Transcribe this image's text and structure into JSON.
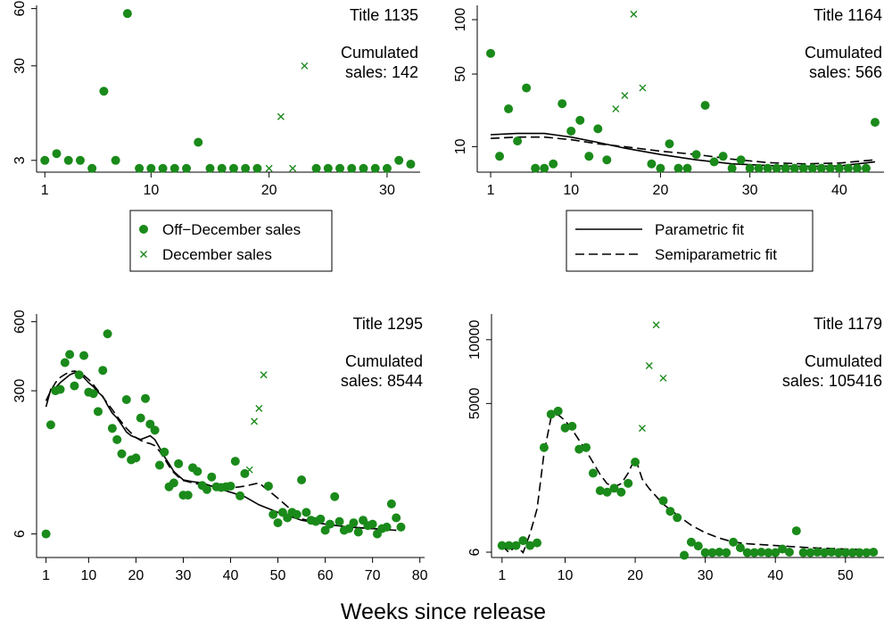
{
  "figure": {
    "xlabel": "Weeks since release"
  },
  "colors": {
    "points": "#1a8a1a",
    "fit": "#000000"
  },
  "legends": {
    "points": [
      {
        "label": "Off−December sales",
        "marker": "circle"
      },
      {
        "label": "December sales",
        "marker": "x"
      }
    ],
    "fits": [
      {
        "label": "Parametric fit",
        "style": "solid"
      },
      {
        "label": "Semiparametric fit",
        "style": "dashed"
      }
    ]
  },
  "chart_data": [
    {
      "type": "scatter",
      "title": "Title 1135",
      "annotation": [
        "Cumulated",
        "sales: 142"
      ],
      "yscale": "sqrt",
      "xlim": [
        0.3,
        32.8
      ],
      "ylim": [
        1.6,
        62
      ],
      "xticks": [
        1,
        10,
        20,
        30
      ],
      "yticks": [
        3,
        30,
        60
      ],
      "off_december": {
        "x": [
          1,
          2,
          3,
          4,
          5,
          6,
          7,
          8,
          9,
          10,
          11,
          12,
          13,
          14,
          15,
          16,
          17,
          18,
          19,
          24,
          25,
          26,
          27,
          28,
          29,
          30,
          31,
          32
        ],
        "y": [
          3,
          4,
          3,
          3,
          2,
          20,
          3,
          57,
          2,
          2,
          2,
          2,
          2,
          6,
          2,
          2,
          2,
          2,
          2,
          2,
          2,
          2,
          2,
          2,
          2,
          2,
          3,
          2.5
        ]
      },
      "december": {
        "x": [
          20,
          21,
          22,
          23
        ],
        "y": [
          2,
          12,
          2,
          30
        ]
      },
      "fits": []
    },
    {
      "type": "scatter",
      "title": "Title 1164",
      "annotation": [
        "Cumulated",
        "sales: 566"
      ],
      "yscale": "sqrt",
      "xlim": [
        -0.5,
        45
      ],
      "ylim": [
        3.2,
        116
      ],
      "xticks": [
        1,
        10,
        20,
        30,
        40
      ],
      "yticks": [
        10,
        50,
        100
      ],
      "off_december": {
        "x": [
          1,
          2,
          3,
          4,
          5,
          6,
          7,
          8,
          9,
          10,
          11,
          12,
          13,
          14,
          19,
          20,
          21,
          22,
          23,
          24,
          25,
          26,
          27,
          28,
          29,
          30,
          31,
          32,
          33,
          34,
          35,
          36,
          37,
          38,
          39,
          40,
          41,
          42,
          43,
          44
        ],
        "y": [
          67,
          7,
          27,
          12,
          40,
          4,
          4,
          5,
          30,
          16,
          21,
          7,
          17,
          6,
          5,
          4,
          11,
          4,
          4,
          7.5,
          29,
          5.5,
          7,
          4,
          6,
          4,
          4,
          4,
          4,
          4,
          4,
          4,
          4,
          4,
          4,
          4,
          4,
          4,
          4,
          20
        ]
      },
      "december": {
        "x": [
          15,
          16,
          17,
          18
        ],
        "y": [
          27,
          35,
          106,
          40
        ]
      },
      "fits": [
        {
          "name": "Parametric fit",
          "style": "solid",
          "x": [
            1,
            4,
            7,
            10,
            13,
            16,
            20,
            24,
            28,
            32,
            36,
            40,
            44
          ],
          "y": [
            14.5,
            15,
            15,
            13.5,
            11.5,
            9.5,
            7.5,
            6,
            5,
            4.6,
            4.4,
            4.5,
            5.5
          ]
        },
        {
          "name": "Semiparametric fit",
          "style": "dashed",
          "x": [
            1,
            4,
            7,
            10,
            13,
            16,
            20,
            24,
            28,
            32,
            36,
            40,
            44
          ],
          "y": [
            13,
            13.5,
            13.5,
            12.5,
            11,
            10,
            8.5,
            7.5,
            6.2,
            5.3,
            5,
            5.2,
            6
          ]
        }
      ]
    },
    {
      "type": "scatter",
      "title": "Title 1295",
      "annotation": [
        "Cumulated",
        "sales: 8544"
      ],
      "yscale": "sqrt",
      "xlim": [
        -1,
        81
      ],
      "ylim": [
        0,
        640
      ],
      "xticks": [
        1,
        10,
        20,
        30,
        40,
        50,
        60,
        70,
        80
      ],
      "yticks": [
        6,
        300,
        600
      ],
      "off_december": {
        "x": [
          1,
          2,
          3,
          4,
          5,
          6,
          7,
          8,
          9,
          10,
          11,
          12,
          13,
          14,
          15,
          16,
          17,
          18,
          19,
          20,
          21,
          22,
          23,
          24,
          25,
          26,
          27,
          28,
          29,
          30,
          31,
          32,
          33,
          34,
          35,
          36,
          37,
          38,
          39,
          40,
          41,
          42,
          43,
          48,
          49,
          50,
          51,
          52,
          53,
          54,
          55,
          56,
          57,
          58,
          59,
          60,
          61,
          62,
          63,
          64,
          65,
          66,
          67,
          68,
          69,
          70,
          71,
          72,
          73,
          74,
          75,
          76
        ],
        "y": [
          6,
          190,
          300,
          305,
          410,
          445,
          318,
          360,
          440,
          295,
          290,
          230,
          378,
          540,
          180,
          150,
          116,
          269,
          103,
          107,
          210,
          273,
          192,
          175,
          92,
          120,
          54,
          60,
          95,
          42,
          42,
          87,
          80,
          56,
          50,
          70,
          54,
          53,
          54,
          55,
          100,
          41,
          76,
          55,
          20,
          13,
          22,
          17,
          22,
          20,
          65,
          22,
          15,
          14,
          16,
          8,
          12,
          40,
          14,
          8,
          9,
          13,
          7,
          15,
          11,
          12,
          6,
          9,
          10,
          31,
          17,
          10
        ]
      },
      "december": {
        "x": [
          44,
          45,
          46,
          47
        ],
        "y": [
          83,
          200,
          240,
          360
        ]
      },
      "fits": [
        {
          "name": "Parametric fit",
          "style": "solid",
          "x": [
            1,
            2,
            3,
            4,
            5,
            6,
            7,
            8,
            9,
            10,
            11,
            12,
            13,
            14,
            15,
            16,
            17,
            18,
            19,
            20,
            21,
            22,
            23,
            24,
            25,
            26,
            27,
            28,
            29,
            30,
            32,
            34,
            36,
            38,
            40,
            43,
            46,
            50,
            55,
            60,
            65,
            70,
            75
          ],
          "y": [
            245,
            305,
            310,
            330,
            345,
            360,
            368,
            365,
            350,
            330,
            315,
            295,
            280,
            250,
            225,
            210,
            190,
            170,
            160,
            155,
            150,
            155,
            160,
            150,
            130,
            110,
            95,
            80,
            72,
            65,
            62,
            60,
            55,
            50,
            46,
            40,
            30,
            22,
            15,
            12,
            10,
            9,
            8
          ]
        },
        {
          "name": "Semiparametric fit",
          "style": "dashed",
          "x": [
            1,
            2,
            3,
            4,
            5,
            6,
            7,
            8,
            9,
            10,
            11,
            12,
            13,
            14,
            15,
            16,
            17,
            18,
            19,
            20,
            21,
            22,
            23,
            24,
            25,
            26,
            27,
            28,
            29,
            30,
            32,
            34,
            36,
            38,
            40,
            43,
            46,
            50,
            55,
            60,
            65,
            70,
            75
          ],
          "y": [
            265,
            300,
            330,
            350,
            362,
            372,
            375,
            370,
            358,
            342,
            322,
            300,
            278,
            256,
            236,
            215,
            197,
            180,
            167,
            155,
            148,
            143,
            140,
            135,
            122,
            106,
            90,
            78,
            70,
            64,
            60,
            57,
            55,
            52,
            52,
            55,
            60,
            38,
            16,
            12,
            10,
            9,
            8
          ]
        }
      ]
    },
    {
      "type": "scatter",
      "title": "Title 1179",
      "annotation": [
        "Cumulated",
        "sales: 105416"
      ],
      "yscale": "sqrt",
      "xlim": [
        -0.5,
        55.5
      ],
      "ylim": [
        0,
        12500
      ],
      "xticks": [
        1,
        10,
        20,
        30,
        40,
        50
      ],
      "yticks": [
        6,
        5000,
        10000
      ],
      "off_december": {
        "x": [
          1,
          2,
          3,
          4,
          5,
          6,
          7,
          8,
          9,
          10,
          11,
          12,
          13,
          14,
          15,
          16,
          17,
          18,
          19,
          20,
          24,
          25,
          26,
          27,
          28,
          29,
          30,
          31,
          32,
          33,
          34,
          35,
          36,
          37,
          38,
          39,
          40,
          41,
          42,
          43,
          44,
          45,
          46,
          47,
          48,
          49,
          50,
          51,
          52,
          53,
          54
        ],
        "y": [
          30,
          30,
          30,
          60,
          30,
          45,
          2550,
          4330,
          4520,
          3540,
          3630,
          2470,
          2550,
          1500,
          940,
          900,
          1010,
          900,
          1160,
          1920,
          680,
          450,
          335,
          1,
          50,
          28,
          5,
          5,
          6,
          5,
          50,
          20,
          5,
          5,
          6,
          5,
          5,
          15,
          6,
          150,
          5,
          5,
          6,
          5,
          6,
          5,
          5,
          5,
          5,
          5,
          6
        ]
      },
      "december": {
        "x": [
          21,
          22,
          23,
          24
        ],
        "y": [
          3520,
          7750,
          11400,
          6780
        ]
      },
      "fits": [
        {
          "name": "Semiparametric fit",
          "style": "dashed",
          "x": [
            1,
            2,
            3,
            4,
            5,
            6,
            7,
            8,
            9,
            10,
            11,
            12,
            13,
            14,
            15,
            16,
            17,
            18,
            19,
            20,
            21,
            22,
            24,
            26,
            28,
            30,
            32,
            34,
            36,
            40,
            45,
            50,
            54
          ],
          "y": [
            30,
            5,
            30,
            5,
            120,
            500,
            2300,
            4150,
            4300,
            3950,
            3450,
            2900,
            2400,
            1900,
            1450,
            1150,
            1050,
            1150,
            1500,
            2100,
            1300,
            1000,
            600,
            380,
            220,
            130,
            80,
            50,
            40,
            30,
            20,
            15,
            12
          ]
        }
      ]
    }
  ]
}
